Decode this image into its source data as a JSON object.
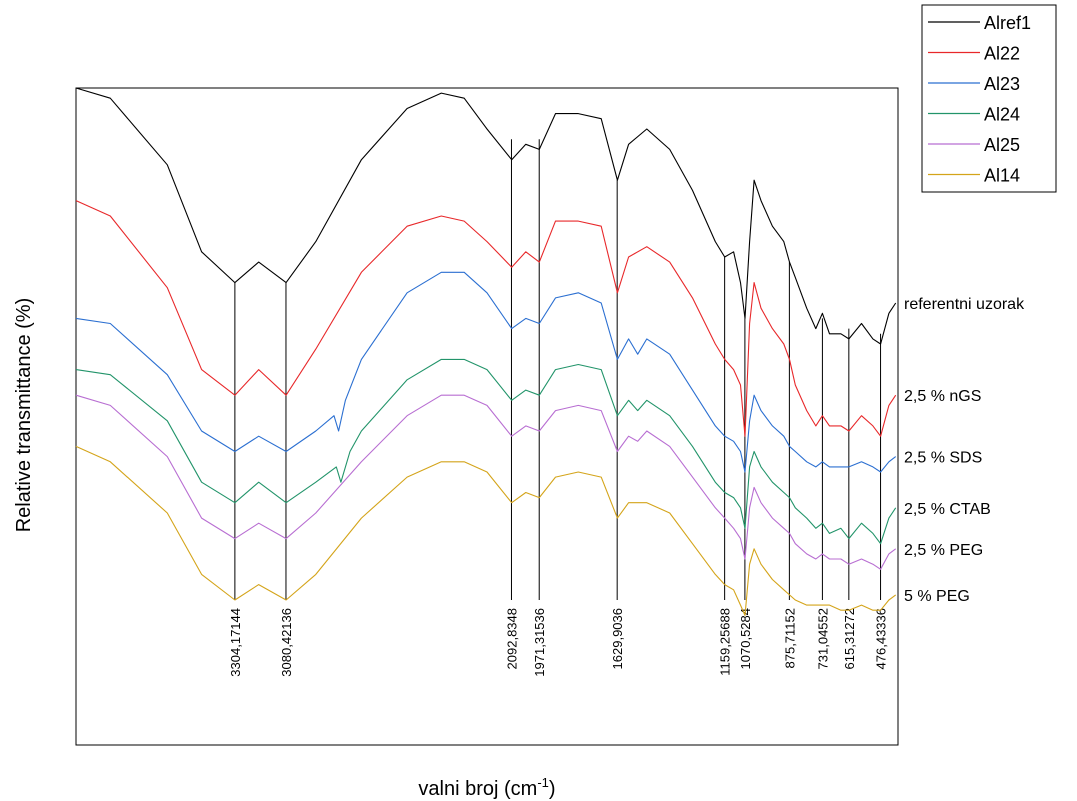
{
  "chart_data": {
    "type": "line",
    "title": "",
    "xlabel": "valni broj (cm",
    "xlabel_sup": "-1",
    "xlabel_end": ")",
    "ylabel": "Relative transmittance (%)",
    "x_reversed": true,
    "xlim": [
      4000,
      400
    ],
    "ylim": [
      0,
      100
    ],
    "grid": false,
    "legend_position": "top-right",
    "series": [
      {
        "name": "Alref1",
        "color": "#000000",
        "sample_label": "referentni uzorak",
        "points": [
          [
            4000,
            100
          ],
          [
            3850,
            98
          ],
          [
            3600,
            85
          ],
          [
            3450,
            68
          ],
          [
            3304,
            62
          ],
          [
            3200,
            66
          ],
          [
            3080,
            62
          ],
          [
            2950,
            70
          ],
          [
            2750,
            86
          ],
          [
            2550,
            96
          ],
          [
            2400,
            99
          ],
          [
            2300,
            98
          ],
          [
            2200,
            92
          ],
          [
            2092,
            86
          ],
          [
            2030,
            89
          ],
          [
            1971,
            88
          ],
          [
            1900,
            95
          ],
          [
            1800,
            95
          ],
          [
            1700,
            94
          ],
          [
            1629,
            82
          ],
          [
            1580,
            89
          ],
          [
            1500,
            92
          ],
          [
            1400,
            88
          ],
          [
            1300,
            80
          ],
          [
            1200,
            70
          ],
          [
            1159,
            67
          ],
          [
            1120,
            68
          ],
          [
            1090,
            62
          ],
          [
            1070,
            55
          ],
          [
            1050,
            70
          ],
          [
            1030,
            82
          ],
          [
            1000,
            78
          ],
          [
            950,
            73
          ],
          [
            900,
            70
          ],
          [
            875,
            66
          ],
          [
            850,
            63
          ],
          [
            800,
            57
          ],
          [
            760,
            53
          ],
          [
            731,
            56
          ],
          [
            700,
            52
          ],
          [
            650,
            52
          ],
          [
            615,
            51
          ],
          [
            560,
            54
          ],
          [
            510,
            51
          ],
          [
            476,
            50
          ],
          [
            440,
            56
          ],
          [
            410,
            58
          ]
        ]
      },
      {
        "name": "Al22",
        "color": "#e8282a",
        "sample_label": "2,5 % nGS",
        "points": [
          [
            4000,
            78
          ],
          [
            3850,
            75
          ],
          [
            3600,
            61
          ],
          [
            3450,
            45
          ],
          [
            3304,
            40
          ],
          [
            3200,
            45
          ],
          [
            3080,
            40
          ],
          [
            2950,
            49
          ],
          [
            2750,
            64
          ],
          [
            2550,
            73
          ],
          [
            2400,
            75
          ],
          [
            2300,
            74
          ],
          [
            2200,
            70
          ],
          [
            2092,
            65
          ],
          [
            2030,
            68
          ],
          [
            1971,
            66
          ],
          [
            1900,
            74
          ],
          [
            1800,
            74
          ],
          [
            1700,
            73
          ],
          [
            1629,
            60
          ],
          [
            1580,
            67
          ],
          [
            1500,
            69
          ],
          [
            1400,
            66
          ],
          [
            1300,
            59
          ],
          [
            1200,
            50
          ],
          [
            1159,
            47
          ],
          [
            1120,
            45
          ],
          [
            1090,
            42
          ],
          [
            1070,
            32
          ],
          [
            1050,
            54
          ],
          [
            1030,
            62
          ],
          [
            1000,
            57
          ],
          [
            950,
            53
          ],
          [
            900,
            50
          ],
          [
            875,
            47
          ],
          [
            850,
            42
          ],
          [
            800,
            37
          ],
          [
            760,
            34
          ],
          [
            731,
            36
          ],
          [
            700,
            34
          ],
          [
            650,
            34
          ],
          [
            615,
            33
          ],
          [
            560,
            36
          ],
          [
            510,
            34
          ],
          [
            476,
            32
          ],
          [
            440,
            38
          ],
          [
            410,
            40
          ]
        ]
      },
      {
        "name": "Al23",
        "color": "#2b6fd1",
        "sample_label": "2,5 % SDS",
        "points": [
          [
            4000,
            55
          ],
          [
            3850,
            54
          ],
          [
            3600,
            44
          ],
          [
            3450,
            33
          ],
          [
            3304,
            29
          ],
          [
            3200,
            32
          ],
          [
            3080,
            29
          ],
          [
            2950,
            33
          ],
          [
            2870,
            36
          ],
          [
            2850,
            33
          ],
          [
            2820,
            39
          ],
          [
            2750,
            47
          ],
          [
            2550,
            60
          ],
          [
            2400,
            64
          ],
          [
            2300,
            64
          ],
          [
            2200,
            60
          ],
          [
            2092,
            53
          ],
          [
            2030,
            55
          ],
          [
            1971,
            54
          ],
          [
            1900,
            59
          ],
          [
            1800,
            60
          ],
          [
            1700,
            58
          ],
          [
            1629,
            47
          ],
          [
            1580,
            51
          ],
          [
            1540,
            48
          ],
          [
            1500,
            51
          ],
          [
            1400,
            48
          ],
          [
            1300,
            41
          ],
          [
            1200,
            34
          ],
          [
            1159,
            32
          ],
          [
            1120,
            31
          ],
          [
            1090,
            29
          ],
          [
            1070,
            25
          ],
          [
            1050,
            35
          ],
          [
            1030,
            40
          ],
          [
            1000,
            37
          ],
          [
            950,
            34
          ],
          [
            900,
            32
          ],
          [
            875,
            30
          ],
          [
            850,
            29
          ],
          [
            800,
            27
          ],
          [
            760,
            26
          ],
          [
            731,
            27
          ],
          [
            700,
            26
          ],
          [
            650,
            26
          ],
          [
            615,
            26
          ],
          [
            560,
            27
          ],
          [
            510,
            26
          ],
          [
            476,
            25
          ],
          [
            440,
            27
          ],
          [
            410,
            28
          ]
        ]
      },
      {
        "name": "Al24",
        "color": "#22946a",
        "sample_label": "2,5 % CTAB",
        "points": [
          [
            4000,
            45
          ],
          [
            3850,
            44
          ],
          [
            3600,
            35
          ],
          [
            3450,
            23
          ],
          [
            3304,
            19
          ],
          [
            3200,
            23
          ],
          [
            3080,
            19
          ],
          [
            2950,
            23
          ],
          [
            2860,
            26
          ],
          [
            2840,
            23
          ],
          [
            2800,
            29
          ],
          [
            2750,
            33
          ],
          [
            2550,
            43
          ],
          [
            2400,
            47
          ],
          [
            2300,
            47
          ],
          [
            2200,
            45
          ],
          [
            2092,
            39
          ],
          [
            2030,
            41
          ],
          [
            1971,
            40
          ],
          [
            1900,
            45
          ],
          [
            1800,
            46
          ],
          [
            1700,
            45
          ],
          [
            1629,
            36
          ],
          [
            1580,
            39
          ],
          [
            1540,
            37
          ],
          [
            1500,
            39
          ],
          [
            1400,
            36
          ],
          [
            1300,
            30
          ],
          [
            1200,
            23
          ],
          [
            1159,
            21
          ],
          [
            1120,
            20
          ],
          [
            1090,
            18
          ],
          [
            1070,
            14
          ],
          [
            1050,
            26
          ],
          [
            1030,
            29
          ],
          [
            1000,
            26
          ],
          [
            950,
            23
          ],
          [
            900,
            21
          ],
          [
            875,
            20
          ],
          [
            850,
            18
          ],
          [
            800,
            16
          ],
          [
            760,
            14
          ],
          [
            731,
            15
          ],
          [
            700,
            13
          ],
          [
            650,
            14
          ],
          [
            615,
            12
          ],
          [
            560,
            15
          ],
          [
            510,
            13
          ],
          [
            476,
            11
          ],
          [
            440,
            16
          ],
          [
            410,
            18
          ]
        ]
      },
      {
        "name": "Al25",
        "color": "#b86ed2",
        "sample_label": "2,5 % PEG",
        "points": [
          [
            4000,
            40
          ],
          [
            3850,
            38
          ],
          [
            3600,
            28
          ],
          [
            3450,
            16
          ],
          [
            3304,
            12
          ],
          [
            3200,
            15
          ],
          [
            3080,
            12
          ],
          [
            2950,
            17
          ],
          [
            2750,
            27
          ],
          [
            2550,
            36
          ],
          [
            2400,
            40
          ],
          [
            2300,
            40
          ],
          [
            2200,
            38
          ],
          [
            2092,
            32
          ],
          [
            2030,
            34
          ],
          [
            1971,
            33
          ],
          [
            1900,
            37
          ],
          [
            1800,
            38
          ],
          [
            1700,
            37
          ],
          [
            1629,
            29
          ],
          [
            1580,
            32
          ],
          [
            1540,
            31
          ],
          [
            1500,
            33
          ],
          [
            1400,
            30
          ],
          [
            1300,
            24
          ],
          [
            1200,
            18
          ],
          [
            1159,
            16
          ],
          [
            1120,
            14
          ],
          [
            1090,
            12
          ],
          [
            1070,
            8
          ],
          [
            1050,
            18
          ],
          [
            1030,
            22
          ],
          [
            1000,
            19
          ],
          [
            950,
            16
          ],
          [
            900,
            14
          ],
          [
            875,
            13
          ],
          [
            850,
            11
          ],
          [
            800,
            9
          ],
          [
            760,
            8
          ],
          [
            731,
            9
          ],
          [
            700,
            8
          ],
          [
            650,
            8
          ],
          [
            615,
            7
          ],
          [
            560,
            8
          ],
          [
            510,
            7
          ],
          [
            476,
            6
          ],
          [
            440,
            9
          ],
          [
            410,
            10
          ]
        ]
      },
      {
        "name": "Al14",
        "color": "#d4a41a",
        "sample_label": "5 % PEG",
        "points": [
          [
            4000,
            30
          ],
          [
            3850,
            27
          ],
          [
            3600,
            17
          ],
          [
            3450,
            5
          ],
          [
            3304,
            0
          ],
          [
            3200,
            3
          ],
          [
            3080,
            0
          ],
          [
            2950,
            5
          ],
          [
            2750,
            16
          ],
          [
            2550,
            24
          ],
          [
            2400,
            27
          ],
          [
            2300,
            27
          ],
          [
            2200,
            25
          ],
          [
            2092,
            19
          ],
          [
            2030,
            21
          ],
          [
            1971,
            20
          ],
          [
            1900,
            24
          ],
          [
            1800,
            25
          ],
          [
            1700,
            24
          ],
          [
            1629,
            16
          ],
          [
            1580,
            19
          ],
          [
            1500,
            19
          ],
          [
            1400,
            17
          ],
          [
            1300,
            11
          ],
          [
            1200,
            5
          ],
          [
            1159,
            3
          ],
          [
            1120,
            2
          ],
          [
            1090,
            -1
          ],
          [
            1070,
            -3
          ],
          [
            1050,
            7
          ],
          [
            1030,
            10
          ],
          [
            1000,
            7
          ],
          [
            950,
            4
          ],
          [
            900,
            2
          ],
          [
            875,
            1
          ],
          [
            850,
            0
          ],
          [
            800,
            -1
          ],
          [
            760,
            -1
          ],
          [
            731,
            -1
          ],
          [
            700,
            -1
          ],
          [
            650,
            -2
          ],
          [
            615,
            -2
          ],
          [
            560,
            -1
          ],
          [
            510,
            -2
          ],
          [
            476,
            -2
          ],
          [
            440,
            0
          ],
          [
            410,
            1
          ]
        ]
      }
    ],
    "annotations": [
      {
        "label": "3304,17144",
        "x": 3304.17144,
        "y_top": 62
      },
      {
        "label": "3080,42136",
        "x": 3080.42136,
        "y_top": 62
      },
      {
        "label": "2092,8348",
        "x": 2092.8348,
        "y_top": 90
      },
      {
        "label": "1971,31536",
        "x": 1971.31536,
        "y_top": 90
      },
      {
        "label": "1629,9036",
        "x": 1629.9036,
        "y_top": 82
      },
      {
        "label": "1159,25688",
        "x": 1159.25688,
        "y_top": 67
      },
      {
        "label": "1070,5284",
        "x": 1070.5284,
        "y_top": 55
      },
      {
        "label": "875,71152",
        "x": 875.71152,
        "y_top": 66
      },
      {
        "label": "731,04552",
        "x": 731.04552,
        "y_top": 55
      },
      {
        "label": "615,31272",
        "x": 615.31272,
        "y_top": 53
      },
      {
        "label": "476,43336",
        "x": 476.43336,
        "y_top": 52
      }
    ]
  }
}
